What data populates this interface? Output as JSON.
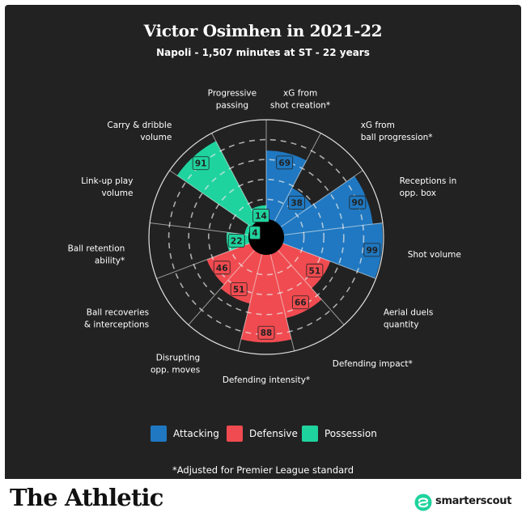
{
  "header": {
    "title": "Victor Osimhen in 2021-22",
    "subtitle": "Napoli - 1,507 minutes at ST - 22 years"
  },
  "chart_data": {
    "type": "polar-bar",
    "max": 100,
    "rings": [
      20,
      40,
      60,
      80,
      100
    ],
    "start_angle_deg": 0,
    "direction": "clockwise",
    "segments": [
      {
        "category": "xG from\nshot creation*",
        "value": 69,
        "group": "Attacking"
      },
      {
        "category": "xG from\nball progression*",
        "value": 38,
        "group": "Attacking"
      },
      {
        "category": "Receptions in\nopp. box",
        "value": 90,
        "group": "Attacking"
      },
      {
        "category": "Shot volume",
        "value": 99,
        "group": "Attacking"
      },
      {
        "category": "Aerial duels\nquantity",
        "value": 51,
        "group": "Defensive"
      },
      {
        "category": "Defending impact*",
        "value": 66,
        "group": "Defensive"
      },
      {
        "category": "Defending intensity*",
        "value": 88,
        "group": "Defensive"
      },
      {
        "category": "Disrupting\nopp. moves",
        "value": 51,
        "group": "Defensive"
      },
      {
        "category": "Ball recoveries\n& interceptions",
        "value": 46,
        "group": "Defensive"
      },
      {
        "category": "Ball retention\nability*",
        "value": 22,
        "group": "Possession"
      },
      {
        "category": "Link-up play\nvolume",
        "value": 4,
        "group": "Possession"
      },
      {
        "category": "Carry & dribble\nvolume",
        "value": 91,
        "group": "Possession"
      },
      {
        "category": "Progressive\npassing",
        "value": 14,
        "group": "Possession"
      }
    ],
    "legend": [
      {
        "name": "Attacking",
        "color": "#1f78c1"
      },
      {
        "name": "Defensive",
        "color": "#f04b50"
      },
      {
        "name": "Possession",
        "color": "#1fd39e"
      }
    ],
    "legend_position": "bottom"
  },
  "footnote": "*Adjusted for Premier League standard",
  "footer": {
    "brand": "The Athletic",
    "partner": "smarterscout",
    "partner_icon": "smarterscout-logo-icon"
  }
}
